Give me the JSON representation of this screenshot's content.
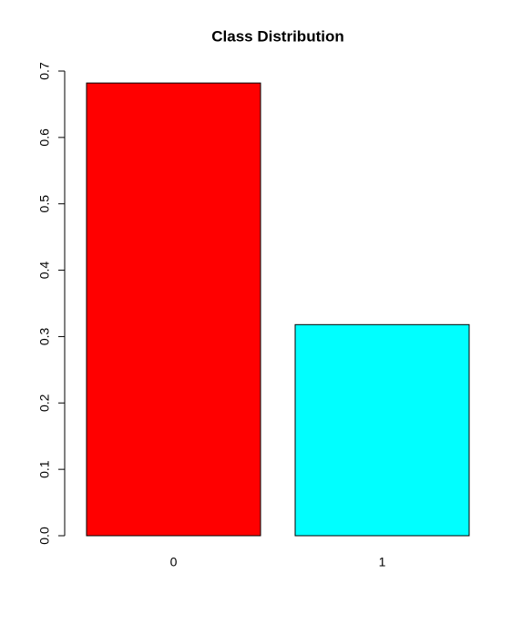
{
  "chart_data": {
    "type": "bar",
    "title": "Class Distribution",
    "categories": [
      "0",
      "1"
    ],
    "values": [
      0.682,
      0.318
    ],
    "colors": [
      "#ff0000",
      "#00ffff"
    ],
    "ylim": [
      0,
      0.7
    ],
    "yticks": [
      {
        "value": 0,
        "label": "0.0"
      },
      0.1,
      0.2,
      0.3,
      0.4,
      0.5,
      0.6,
      0.7
    ]
  }
}
